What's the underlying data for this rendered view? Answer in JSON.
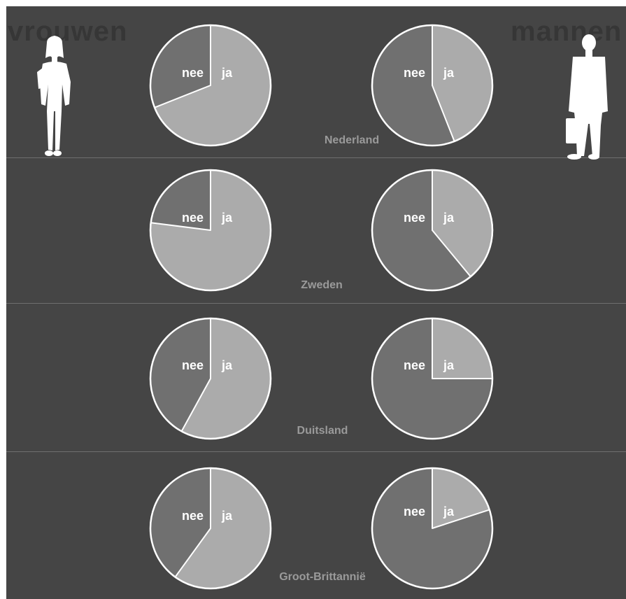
{
  "headers": {
    "left": "vrouwen",
    "right": "mannen"
  },
  "colors": {
    "background": "#454545",
    "ja": "#ababab",
    "nee": "#707070",
    "outline": "#ffffff",
    "country_label": "#9a9a9a"
  },
  "icons": {
    "left": "woman-silhouette-icon",
    "right": "man-silhouette-icon"
  },
  "chart_data": [
    {
      "type": "pie",
      "title": "Nederland",
      "group": "vrouwen",
      "labels": [
        "ja",
        "nee"
      ],
      "values": [
        0.69,
        0.31
      ]
    },
    {
      "type": "pie",
      "title": "Nederland",
      "group": "mannen",
      "labels": [
        "ja",
        "nee"
      ],
      "values": [
        0.44,
        0.56
      ]
    },
    {
      "type": "pie",
      "title": "Zweden",
      "group": "vrouwen",
      "labels": [
        "ja",
        "nee"
      ],
      "values": [
        0.77,
        0.23
      ]
    },
    {
      "type": "pie",
      "title": "Zweden",
      "group": "mannen",
      "labels": [
        "ja",
        "nee"
      ],
      "values": [
        0.39,
        0.61
      ]
    },
    {
      "type": "pie",
      "title": "Duitsland",
      "group": "vrouwen",
      "labels": [
        "ja",
        "nee"
      ],
      "values": [
        0.58,
        0.42
      ]
    },
    {
      "type": "pie",
      "title": "Duitsland",
      "group": "mannen",
      "labels": [
        "ja",
        "nee"
      ],
      "values": [
        0.25,
        0.75
      ]
    },
    {
      "type": "pie",
      "title": "Groot-Brittannië",
      "group": "vrouwen",
      "labels": [
        "ja",
        "nee"
      ],
      "values": [
        0.6,
        0.4
      ]
    },
    {
      "type": "pie",
      "title": "Groot-Brittannië",
      "group": "mannen",
      "labels": [
        "ja",
        "nee"
      ],
      "values": [
        0.2,
        0.8
      ]
    }
  ]
}
